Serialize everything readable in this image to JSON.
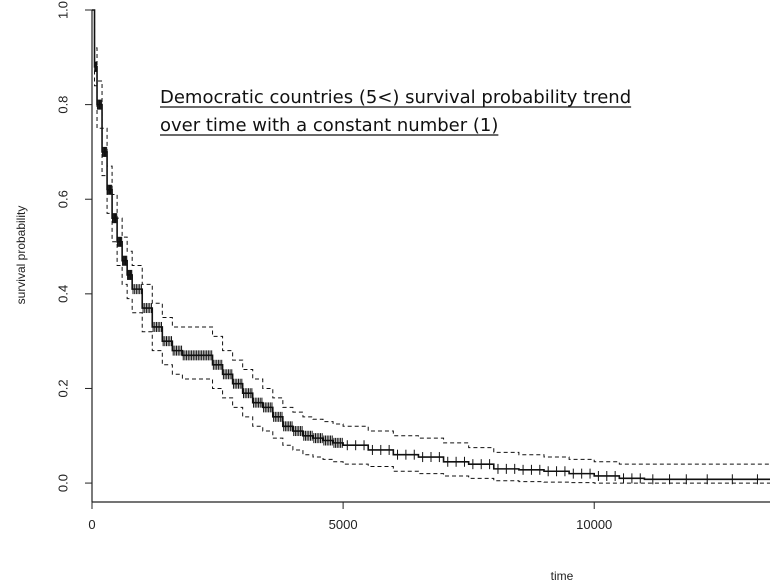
{
  "chart_data": {
    "type": "line",
    "title": "Democratic countries (5<) survival probability trend over time with a constant number (1)",
    "title_lines": [
      "Democratic countries (5<) survival probability trend",
      "over time with a constant number (1)"
    ],
    "xlabel": "time",
    "ylabel": "survival probability",
    "xlim": [
      0,
      13500
    ],
    "ylim": [
      -0.04,
      1.0
    ],
    "x_ticks": [
      0,
      5000,
      10000
    ],
    "x_tick_labels": [
      "0",
      "5000",
      "10000"
    ],
    "y_ticks": [
      0.0,
      0.2,
      0.4,
      0.6,
      0.8,
      1.0
    ],
    "y_tick_labels": [
      "0.0",
      "0.2",
      "0.4",
      "0.6",
      "0.8",
      "1.0"
    ],
    "grid": false,
    "colors": {
      "line": "#111111",
      "axis": "#222222"
    },
    "series": [
      {
        "style": "solid",
        "censor_marks": true,
        "x": [
          0,
          50,
          100,
          200,
          300,
          400,
          500,
          600,
          700,
          800,
          1000,
          1200,
          1400,
          1600,
          1800,
          2000,
          2200,
          2400,
          2600,
          2800,
          3000,
          3200,
          3400,
          3600,
          3800,
          4000,
          4200,
          4400,
          4600,
          4800,
          5000,
          5500,
          6000,
          6500,
          7000,
          7500,
          8000,
          8500,
          9000,
          9500,
          10000,
          10500,
          11000,
          12000,
          13500
        ],
        "y": [
          1.0,
          0.88,
          0.8,
          0.7,
          0.62,
          0.56,
          0.51,
          0.47,
          0.44,
          0.41,
          0.37,
          0.33,
          0.3,
          0.28,
          0.27,
          0.27,
          0.27,
          0.25,
          0.23,
          0.21,
          0.19,
          0.17,
          0.16,
          0.14,
          0.12,
          0.11,
          0.1,
          0.095,
          0.09,
          0.085,
          0.08,
          0.07,
          0.06,
          0.055,
          0.045,
          0.04,
          0.03,
          0.028,
          0.025,
          0.02,
          0.015,
          0.01,
          0.008,
          0.008,
          0.008
        ]
      },
      {
        "style": "dashed",
        "x": [
          0,
          50,
          100,
          200,
          300,
          400,
          500,
          600,
          700,
          800,
          1000,
          1200,
          1400,
          1600,
          1800,
          2000,
          2200,
          2400,
          2600,
          2800,
          3000,
          3200,
          3400,
          3600,
          3800,
          4000,
          4200,
          4400,
          4600,
          4800,
          5000,
          5500,
          6000,
          6500,
          7000,
          7500,
          8000,
          8500,
          9000,
          9500,
          10000,
          10500,
          11000,
          12000,
          13500
        ],
        "y": [
          1.0,
          0.92,
          0.85,
          0.75,
          0.67,
          0.61,
          0.56,
          0.52,
          0.49,
          0.46,
          0.42,
          0.38,
          0.35,
          0.33,
          0.33,
          0.33,
          0.33,
          0.31,
          0.28,
          0.26,
          0.24,
          0.22,
          0.2,
          0.18,
          0.16,
          0.15,
          0.14,
          0.135,
          0.13,
          0.125,
          0.12,
          0.11,
          0.1,
          0.095,
          0.085,
          0.075,
          0.065,
          0.06,
          0.055,
          0.05,
          0.045,
          0.04,
          0.04,
          0.04,
          0.04
        ]
      },
      {
        "style": "dashed",
        "x": [
          0,
          50,
          100,
          200,
          300,
          400,
          500,
          600,
          700,
          800,
          1000,
          1200,
          1400,
          1600,
          1800,
          2000,
          2200,
          2400,
          2600,
          2800,
          3000,
          3200,
          3400,
          3600,
          3800,
          4000,
          4200,
          4400,
          4600,
          4800,
          5000,
          5500,
          6000,
          6500,
          7000,
          7500,
          8000,
          8500,
          9000,
          9500,
          10000,
          10500,
          11000,
          12000,
          13500
        ],
        "y": [
          1.0,
          0.84,
          0.75,
          0.65,
          0.57,
          0.51,
          0.46,
          0.42,
          0.39,
          0.36,
          0.32,
          0.28,
          0.25,
          0.23,
          0.22,
          0.22,
          0.22,
          0.2,
          0.18,
          0.16,
          0.14,
          0.12,
          0.11,
          0.095,
          0.08,
          0.07,
          0.06,
          0.055,
          0.05,
          0.045,
          0.04,
          0.035,
          0.025,
          0.02,
          0.015,
          0.01,
          0.005,
          0.003,
          0.002,
          0.001,
          0.0,
          0.0,
          0.0,
          0.0,
          0.0
        ]
      }
    ]
  }
}
